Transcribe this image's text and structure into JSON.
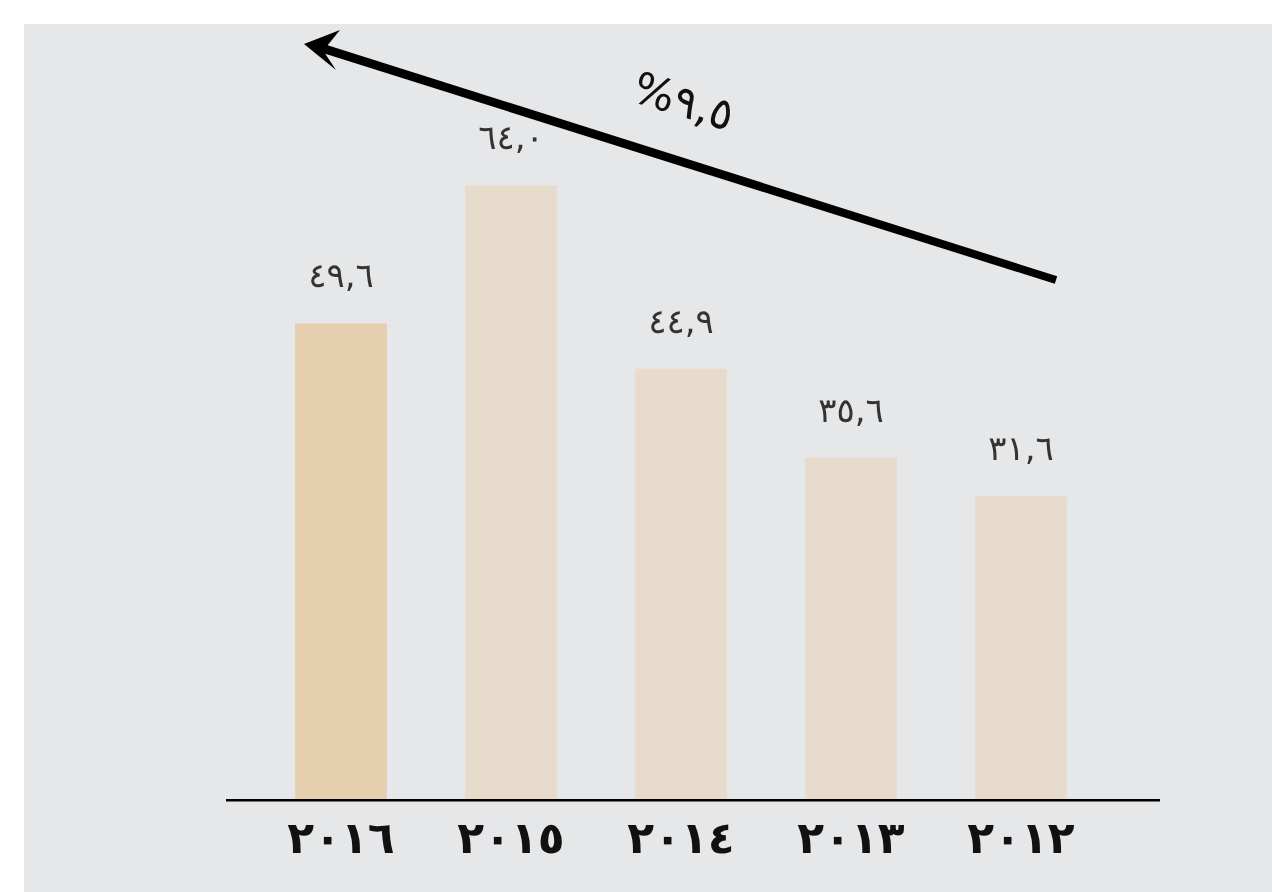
{
  "chart_data": {
    "type": "bar",
    "categories": [
      "٢٠١٦",
      "٢٠١٥",
      "٢٠١٤",
      "٢٠١٣",
      "٢٠١٢"
    ],
    "values": [
      49.6,
      64.0,
      44.9,
      35.6,
      31.6
    ],
    "colors": [
      "#e6cfae",
      "#e7dccb",
      "#e7dccb",
      "#e7dccb",
      "#e7dccb"
    ],
    "value_labels": [
      "٤٩,٦",
      "٦٤,٠",
      "٤٤,٩",
      "٣٥,٦",
      "٣١,٦"
    ],
    "annotations": [
      "%٩,٥"
    ],
    "grid": false,
    "legend": false,
    "tick_labels": "x"
  }
}
